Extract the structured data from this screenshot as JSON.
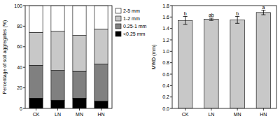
{
  "chart_data": [
    {
      "type": "bar",
      "stacked": true,
      "y_label": "Percentage of soil aggregates (%)",
      "categories": [
        "CK",
        "LN",
        "MN",
        "HN"
      ],
      "series": [
        {
          "name": "<0.25 mm",
          "color": "#000000",
          "values": [
            10,
            8,
            10,
            7
          ]
        },
        {
          "name": "0.25-1 mm",
          "color": "#808080",
          "values": [
            32,
            29,
            26,
            36
          ]
        },
        {
          "name": "1-2 mm",
          "color": "#c8c8c8",
          "values": [
            32,
            38,
            35,
            34
          ]
        },
        {
          "name": "2-5 mm",
          "color": "#ffffff",
          "values": [
            26,
            25,
            29,
            23
          ]
        }
      ],
      "ylim": [
        0,
        100
      ],
      "yticks": [
        0,
        20,
        40,
        60,
        80,
        100
      ],
      "legend": "right"
    },
    {
      "type": "bar",
      "y_label": "MWD (mm)",
      "categories": [
        "CK",
        "LN",
        "MN",
        "HN"
      ],
      "values": [
        1.54,
        1.56,
        1.55,
        1.68
      ],
      "errors": [
        0.07,
        0.02,
        0.06,
        0.04
      ],
      "annotations": [
        "b",
        "ab",
        "b",
        "a"
      ],
      "color": "#c8c8c8",
      "ylim": [
        0,
        1.8
      ],
      "yticks": [
        {
          "value": 0,
          "label": "0.0"
        },
        {
          "value": 0.2,
          "label": "0.2"
        },
        {
          "value": 0.4,
          "label": "0.4"
        },
        {
          "value": 0.6,
          "label": "0.6"
        },
        {
          "value": 0.8,
          "label": "0.8"
        },
        {
          "value": 1.0,
          "label": "1.0"
        },
        {
          "value": 1.2,
          "label": "1.2"
        },
        {
          "value": 1.4,
          "label": "1.4"
        },
        {
          "value": 1.6,
          "label": "1.6"
        },
        {
          "value": 1.8,
          "label": "1.8"
        }
      ]
    }
  ]
}
